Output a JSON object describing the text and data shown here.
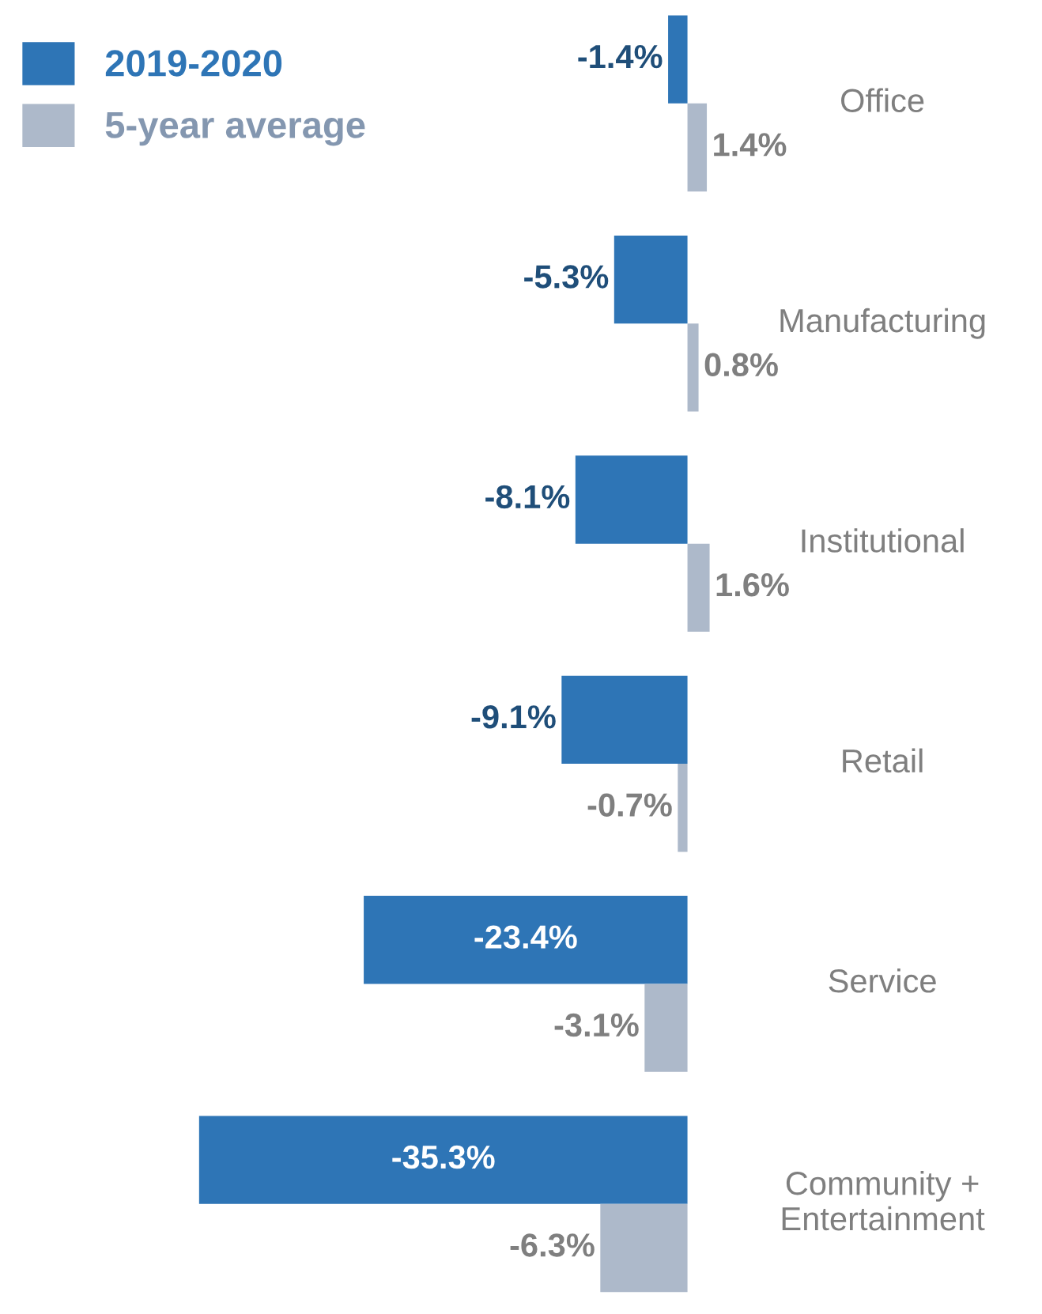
{
  "chart_data": {
    "type": "bar",
    "orientation": "horizontal",
    "categories": [
      "Office",
      "Manufacturing",
      "Institutional",
      "Retail",
      "Service",
      "Community +\nEntertainment"
    ],
    "series": [
      {
        "name": "2019-2020",
        "color": "#2e75b6",
        "values": [
          -1.4,
          -5.3,
          -8.1,
          -9.1,
          -23.4,
          -35.3
        ],
        "value_labels": [
          "-1.4%",
          "-5.3%",
          "-8.1%",
          "-9.1%",
          "-23.4%",
          "-35.3%"
        ]
      },
      {
        "name": "5-year average",
        "color": "#adb9ca",
        "values": [
          1.4,
          0.8,
          1.6,
          -0.7,
          -3.1,
          -6.3
        ],
        "value_labels": [
          "1.4%",
          "0.8%",
          "1.6%",
          "-0.7%",
          "-3.1%",
          "-6.3%"
        ]
      }
    ],
    "legend": "top left"
  }
}
